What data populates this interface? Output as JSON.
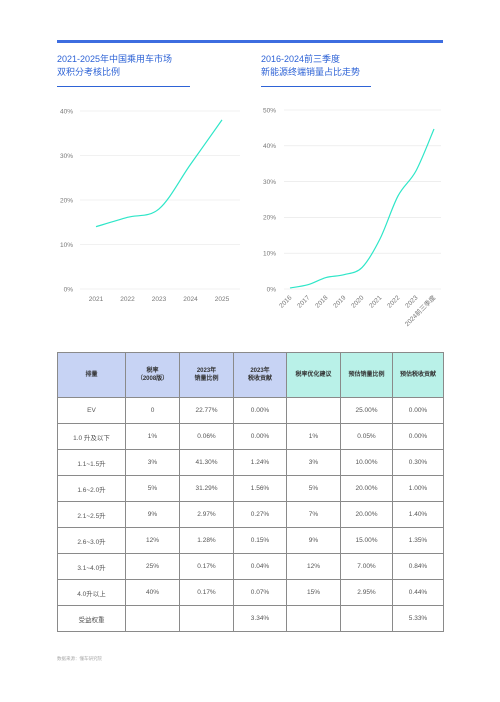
{
  "colors": {
    "accent": "#3d6de0",
    "line": "#2ee6c8",
    "header_blue": "#c7d3f4",
    "header_teal": "#b9f1e8"
  },
  "chart1": {
    "title_line1": "2021-2025年中国乘用车市场",
    "title_line2": "双积分考核比例"
  },
  "chart2": {
    "title_line1": "2016-2024前三季度",
    "title_line2": "新能源终端销量占比走势"
  },
  "chart_data": [
    {
      "type": "line",
      "x": [
        "2021",
        "2022",
        "2023",
        "2024",
        "2025"
      ],
      "series": [
        {
          "values": [
            14,
            16.1,
            18,
            28,
            38
          ]
        }
      ],
      "ylim": [
        0,
        40
      ],
      "yticks": [
        "0%",
        "10%",
        "20%",
        "30%",
        "40%"
      ],
      "grid": true
    },
    {
      "type": "line",
      "x": [
        "2016",
        "2017",
        "2018",
        "2019",
        "2020",
        "2021",
        "2022",
        "2023",
        "2024前三季度"
      ],
      "series": [
        {
          "values": [
            0.3,
            1.2,
            3.2,
            4,
            6,
            14,
            26,
            33,
            44.7
          ]
        }
      ],
      "ylim": [
        0,
        50
      ],
      "yticks": [
        "0%",
        "10%",
        "20%",
        "30%",
        "40%",
        "50%"
      ],
      "grid": true
    }
  ],
  "table": {
    "headers": [
      "排量",
      "税率\n（2008版）",
      "2023年\n销量比例",
      "2023年\n税收贡献",
      "税率优化建议",
      "预估销量比例",
      "预估税收贡献"
    ],
    "rows": [
      [
        "EV",
        "0",
        "22.77%",
        "0.00%",
        "",
        "25.00%",
        "0.00%"
      ],
      [
        "1.0 升及以下",
        "1%",
        "0.06%",
        "0.00%",
        "1%",
        "0.05%",
        "0.00%"
      ],
      [
        "1.1~1.5升",
        "3%",
        "41.30%",
        "1.24%",
        "3%",
        "10.00%",
        "0.30%"
      ],
      [
        "1.6~2.0升",
        "5%",
        "31.29%",
        "1.56%",
        "5%",
        "20.00%",
        "1.00%"
      ],
      [
        "2.1~2.5升",
        "9%",
        "2.97%",
        "0.27%",
        "7%",
        "20.00%",
        "1.40%"
      ],
      [
        "2.6~3.0升",
        "12%",
        "1.28%",
        "0.15%",
        "9%",
        "15.00%",
        "1.35%"
      ],
      [
        "3.1~4.0升",
        "25%",
        "0.17%",
        "0.04%",
        "12%",
        "7.00%",
        "0.84%"
      ],
      [
        "4.0升以上",
        "40%",
        "0.17%",
        "0.07%",
        "15%",
        "2.95%",
        "0.44%"
      ],
      [
        "受益权重",
        "",
        "",
        "3.34%",
        "",
        "",
        "5.33%"
      ]
    ]
  },
  "footer": {
    "source": "数据来源：懂车研究院"
  }
}
